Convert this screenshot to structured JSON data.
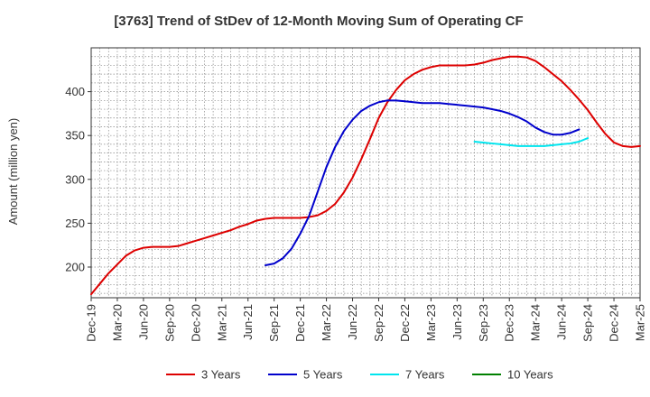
{
  "chart_data": {
    "type": "line",
    "title": "[3763]  Trend of StDev of 12-Month Moving Sum of Operating CF",
    "ylabel": "Amount (million yen)",
    "xlabel": "",
    "ylim": [
      165,
      450
    ],
    "yticks": [
      200,
      250,
      300,
      350,
      400
    ],
    "xlim": [
      "2019-12",
      "2025-03"
    ],
    "xtick_labels": [
      "Dec-19",
      "Mar-20",
      "Jun-20",
      "Sep-20",
      "Dec-20",
      "Mar-21",
      "Jun-21",
      "Sep-21",
      "Dec-21",
      "Mar-22",
      "Jun-22",
      "Sep-22",
      "Dec-22",
      "Mar-23",
      "Jun-23",
      "Sep-23",
      "Dec-23",
      "Mar-24",
      "Jun-24",
      "Sep-24",
      "Dec-24",
      "Mar-25"
    ],
    "grid": true,
    "legend_position": "bottom",
    "series": [
      {
        "name": "3 Years",
        "color": "#dd0000",
        "start": "2019-12",
        "values": [
          169,
          181,
          193,
          203,
          213,
          219,
          222,
          223,
          223,
          223,
          224,
          227,
          230,
          233,
          236,
          239,
          242,
          246,
          249,
          253,
          255,
          256,
          256,
          256,
          256,
          257,
          259,
          264,
          272,
          285,
          302,
          323,
          346,
          370,
          388,
          402,
          413,
          420,
          425,
          428,
          430,
          430,
          430,
          430,
          431,
          433,
          436,
          438,
          440,
          440,
          439,
          435,
          428,
          420,
          412,
          402,
          391,
          379,
          365,
          352,
          342,
          338,
          337,
          338
        ]
      },
      {
        "name": "5 Years",
        "color": "#0000cc",
        "start": "2021-08",
        "values": [
          202,
          204,
          210,
          221,
          238,
          258,
          286,
          314,
          337,
          355,
          368,
          378,
          384,
          388,
          390,
          390,
          389,
          388,
          387,
          387,
          387,
          386,
          385,
          384,
          383,
          382,
          380,
          378,
          375,
          371,
          366,
          359,
          354,
          351,
          351,
          353,
          357
        ]
      },
      {
        "name": "7 Years",
        "color": "#00e5ee",
        "start": "2023-08",
        "values": [
          343,
          342,
          341,
          340,
          339,
          338,
          338,
          338,
          338,
          339,
          340,
          341,
          343,
          347
        ]
      },
      {
        "name": "10 Years",
        "color": "#008000",
        "start": "2024-09",
        "values": []
      }
    ]
  }
}
